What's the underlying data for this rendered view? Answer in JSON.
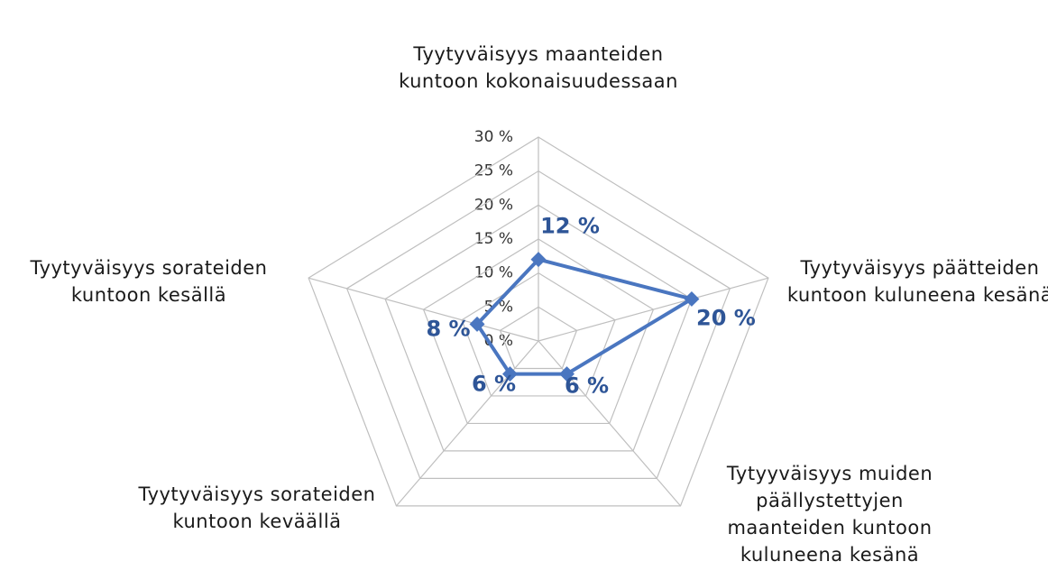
{
  "chart_data": {
    "type": "radar",
    "categories": [
      "Tyytyväisyys maanteiden kuntoon kokonaisuudessaan",
      "Tyytyväisyys päätteiden kuntoon kuluneena kesänä",
      "Tytyyväisyys muiden päällystettyjen maanteiden kuntoon kuluneena kesänä",
      "Tyytyväisyys sorateiden kuntoon keväällä",
      "Tyytyväisyys sorateiden kuntoon kesällä"
    ],
    "values": [
      12,
      20,
      6,
      6,
      8
    ],
    "value_labels": [
      "12 %",
      "20 %",
      "6 %",
      "6 %",
      "8 %"
    ],
    "color": "#4a76c0",
    "ylim": [
      0,
      30
    ],
    "yticks": [
      {
        "value": 0,
        "label": "0 %"
      },
      {
        "value": 5,
        "label": "5 %"
      },
      {
        "value": 10,
        "label": "10 %"
      },
      {
        "value": 15,
        "label": "15 %"
      },
      {
        "value": 20,
        "label": "20 %"
      },
      {
        "value": 25,
        "label": "25 %"
      },
      {
        "value": 30,
        "label": "30 %"
      }
    ],
    "grid": true
  }
}
